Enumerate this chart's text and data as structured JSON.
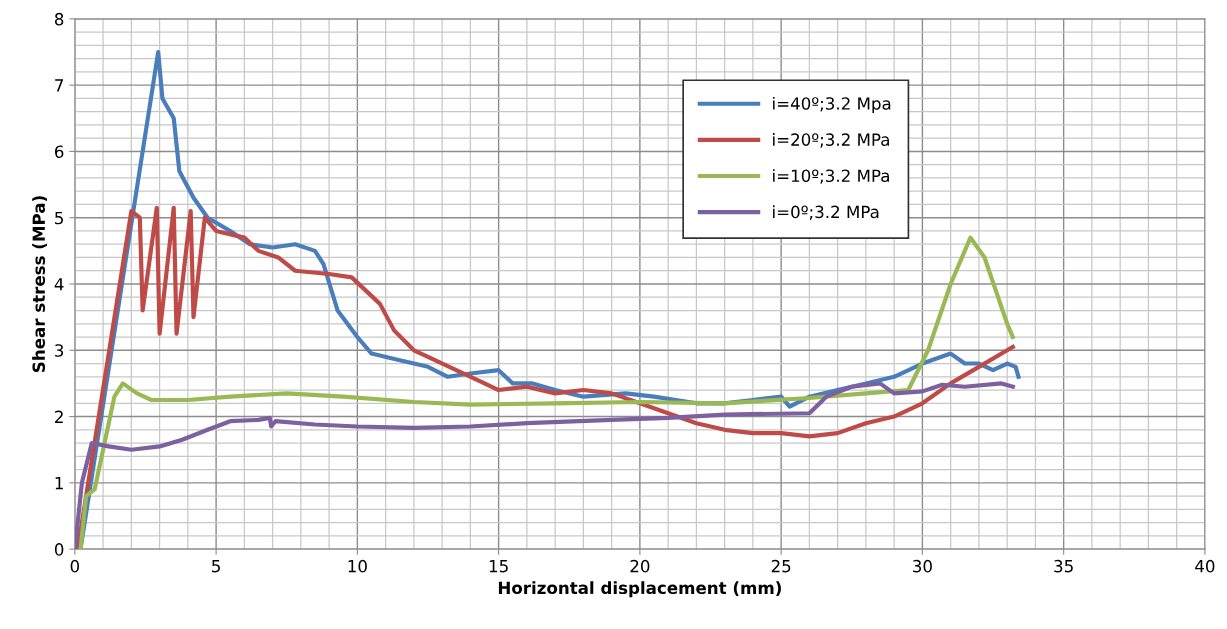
{
  "chart_data": {
    "type": "line",
    "xlabel": "Horizontal displacement (mm)",
    "ylabel": "Shear stress (MPa)",
    "xlim": [
      0,
      40
    ],
    "ylim": [
      0,
      8
    ],
    "xticks": [
      0,
      5,
      10,
      15,
      20,
      25,
      30,
      35,
      40
    ],
    "yticks": [
      0,
      1,
      2,
      3,
      4,
      5,
      6,
      7,
      8
    ],
    "grid": true,
    "legend": "top right",
    "marker": "none",
    "line_style": "solid",
    "series": [
      {
        "name": "i=40º;3.2 Mpa",
        "color": "#4a7ebb",
        "x": [
          0.2,
          2.95,
          3.1,
          3.5,
          3.7,
          4.2,
          4.7,
          5.5,
          6.2,
          7,
          7.8,
          8.5,
          8.8,
          9.3,
          10,
          10.5,
          11.5,
          12.5,
          13.2,
          14,
          15,
          15.5,
          16.2,
          17,
          18,
          19.5,
          20.5,
          22,
          23,
          24,
          25,
          25.3,
          26,
          27,
          28,
          29,
          30,
          31,
          31.5,
          32,
          32.5,
          33,
          33.3,
          33.4
        ],
        "values": [
          0,
          7.5,
          6.8,
          6.5,
          5.7,
          5.3,
          5.0,
          4.8,
          4.6,
          4.55,
          4.6,
          4.5,
          4.3,
          3.6,
          3.2,
          2.95,
          2.85,
          2.75,
          2.6,
          2.65,
          2.7,
          2.5,
          2.5,
          2.4,
          2.3,
          2.35,
          2.3,
          2.2,
          2.2,
          2.25,
          2.3,
          2.15,
          2.3,
          2.4,
          2.5,
          2.6,
          2.8,
          2.95,
          2.8,
          2.8,
          2.7,
          2.8,
          2.75,
          2.6
        ]
      },
      {
        "name": "i=20º;3.2 MPa",
        "color": "#be4b48",
        "x": [
          0.1,
          2.0,
          2.3,
          2.4,
          2.9,
          3.0,
          3.5,
          3.6,
          4.1,
          4.2,
          4.6,
          5,
          6,
          6.5,
          7.2,
          7.8,
          9,
          9.8,
          10.3,
          10.8,
          11.3,
          12,
          12.5,
          13.5,
          14.5,
          15,
          16,
          17,
          18,
          19,
          20,
          21,
          22,
          23,
          24,
          25,
          26,
          27,
          28,
          29,
          30,
          31,
          32,
          33,
          33.2
        ],
        "values": [
          0,
          5.1,
          5.0,
          3.6,
          5.15,
          3.25,
          5.15,
          3.25,
          5.1,
          3.5,
          5.0,
          4.8,
          4.7,
          4.5,
          4.4,
          4.2,
          4.15,
          4.1,
          3.9,
          3.7,
          3.3,
          3.0,
          2.9,
          2.7,
          2.5,
          2.4,
          2.45,
          2.35,
          2.4,
          2.35,
          2.2,
          2.05,
          1.9,
          1.8,
          1.75,
          1.75,
          1.7,
          1.75,
          1.9,
          2.0,
          2.2,
          2.5,
          2.75,
          3.0,
          3.05
        ]
      },
      {
        "name": "i=10º;3.2 MPa",
        "color": "#98b954",
        "x": [
          0.2,
          0.4,
          0.7,
          1.0,
          1.4,
          1.7,
          2.2,
          2.7,
          4,
          5.5,
          7.5,
          9.5,
          12,
          14,
          17,
          20,
          23,
          26,
          28,
          29.5,
          30.2,
          31,
          31.7,
          32.2,
          32.6,
          33,
          33.2
        ],
        "values": [
          0,
          0.8,
          0.9,
          1.5,
          2.3,
          2.5,
          2.35,
          2.25,
          2.25,
          2.3,
          2.35,
          2.3,
          2.22,
          2.18,
          2.2,
          2.22,
          2.2,
          2.28,
          2.35,
          2.4,
          3.0,
          4.0,
          4.7,
          4.4,
          3.9,
          3.4,
          3.2
        ]
      },
      {
        "name": "i=0º;3.2 MPa",
        "color": "#7d60a0",
        "x": [
          0,
          0.25,
          0.6,
          1.2,
          2.0,
          3,
          3.8,
          4.7,
          5.5,
          6.5,
          6.9,
          6.95,
          7.1,
          8.5,
          10,
          12,
          14,
          16,
          19,
          21,
          23,
          26,
          26.6,
          27.5,
          28.5,
          29,
          30,
          30.7,
          31.5,
          32.8,
          33.2
        ],
        "values": [
          0,
          1.0,
          1.6,
          1.55,
          1.5,
          1.55,
          1.65,
          1.8,
          1.93,
          1.95,
          1.98,
          1.85,
          1.93,
          1.88,
          1.85,
          1.83,
          1.85,
          1.9,
          1.95,
          1.98,
          2.03,
          2.05,
          2.3,
          2.45,
          2.5,
          2.35,
          2.38,
          2.48,
          2.45,
          2.5,
          2.45
        ]
      }
    ]
  }
}
